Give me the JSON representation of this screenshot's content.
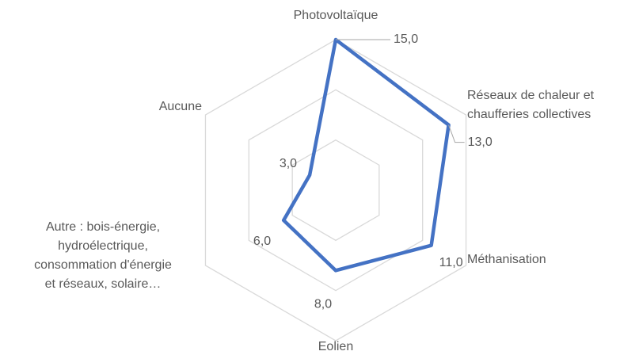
{
  "chart_data": {
    "type": "radar",
    "categories": [
      "Photovoltaïque",
      "Réseaux de chaleur et\nchaufferies collectives",
      "Méthanisation",
      "Eolien",
      "Autre : bois-énergie,\nhydroélectrique,\nconsommation d'énergie\net réseaux, solaire…",
      "Aucune"
    ],
    "values": [
      15,
      13,
      11,
      8,
      6,
      3
    ],
    "value_labels": [
      "15,0",
      "13,0",
      "11,0",
      "8,0",
      "6,0",
      "3,0"
    ],
    "color": "#4472c4",
    "ylim": [
      0,
      15
    ],
    "yticks": [
      0,
      5,
      10,
      15
    ],
    "grid": true
  }
}
